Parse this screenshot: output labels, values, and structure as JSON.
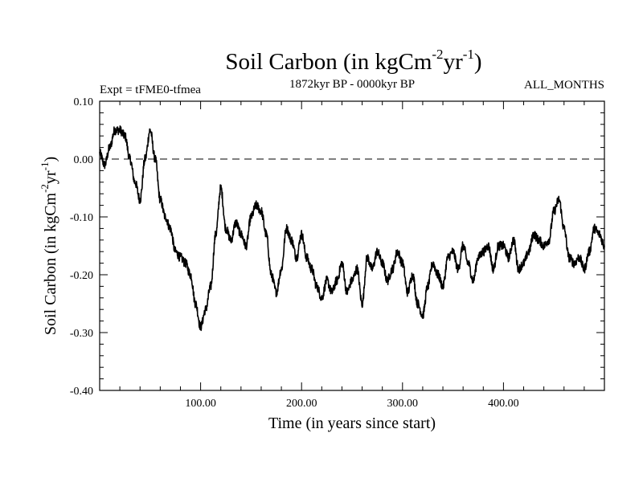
{
  "chart_data": {
    "type": "line",
    "title_main": "Soil Carbon (in kgCm",
    "title_sup1": "-2",
    "title_mid": "yr",
    "title_sup2": "-1",
    "title_end": ")",
    "expt_label": "Expt = tFME0-tfmea",
    "period_label": "1872kyr BP - 0000kyr BP",
    "season_label": "ALL_MONTHS",
    "xlabel": "Time (in years since start)",
    "ylabel_main": "Soil Carbon (in kgCm",
    "ylabel_sup1": "-2",
    "ylabel_mid": "yr",
    "ylabel_sup2": "-1",
    "ylabel_end": ")",
    "xlim": [
      0,
      500
    ],
    "ylim": [
      -0.4,
      0.1
    ],
    "xticks": [
      100,
      200,
      300,
      400
    ],
    "xtick_labels": [
      "100.00",
      "200.00",
      "300.00",
      "400.00"
    ],
    "yticks": [
      0.1,
      0.0,
      -0.1,
      -0.2,
      -0.3,
      -0.4
    ],
    "ytick_labels": [
      "0.10",
      "0.00",
      "-0.10",
      "-0.20",
      "-0.30",
      "-0.40"
    ],
    "reference_line": {
      "y": 0.0,
      "style": "dashed"
    },
    "series": [
      {
        "name": "Soil Carbon",
        "x": [
          0,
          5,
          10,
          15,
          20,
          25,
          30,
          35,
          40,
          45,
          50,
          55,
          60,
          65,
          70,
          75,
          80,
          85,
          90,
          95,
          100,
          105,
          110,
          115,
          120,
          125,
          130,
          135,
          140,
          145,
          150,
          155,
          160,
          165,
          170,
          175,
          180,
          185,
          190,
          195,
          200,
          205,
          210,
          215,
          220,
          225,
          230,
          235,
          240,
          245,
          250,
          255,
          260,
          265,
          270,
          275,
          280,
          285,
          290,
          295,
          300,
          305,
          310,
          315,
          320,
          325,
          330,
          335,
          340,
          345,
          350,
          355,
          360,
          365,
          370,
          375,
          380,
          385,
          390,
          395,
          400,
          405,
          410,
          415,
          420,
          425,
          430,
          435,
          440,
          445,
          450,
          455,
          460,
          465,
          470,
          475,
          480,
          485,
          490,
          495,
          500
        ],
        "y": [
          0.01,
          -0.01,
          0.02,
          0.05,
          0.05,
          0.04,
          0.0,
          -0.04,
          -0.07,
          0.0,
          0.05,
          0.0,
          -0.07,
          -0.1,
          -0.12,
          -0.16,
          -0.17,
          -0.18,
          -0.2,
          -0.25,
          -0.29,
          -0.26,
          -0.22,
          -0.13,
          -0.05,
          -0.12,
          -0.14,
          -0.11,
          -0.13,
          -0.15,
          -0.1,
          -0.08,
          -0.09,
          -0.13,
          -0.2,
          -0.23,
          -0.19,
          -0.12,
          -0.14,
          -0.17,
          -0.13,
          -0.17,
          -0.19,
          -0.22,
          -0.24,
          -0.21,
          -0.23,
          -0.21,
          -0.18,
          -0.23,
          -0.21,
          -0.19,
          -0.25,
          -0.17,
          -0.19,
          -0.16,
          -0.18,
          -0.21,
          -0.19,
          -0.16,
          -0.18,
          -0.23,
          -0.2,
          -0.25,
          -0.27,
          -0.22,
          -0.18,
          -0.2,
          -0.22,
          -0.17,
          -0.16,
          -0.19,
          -0.15,
          -0.18,
          -0.21,
          -0.17,
          -0.16,
          -0.15,
          -0.19,
          -0.15,
          -0.15,
          -0.17,
          -0.14,
          -0.19,
          -0.18,
          -0.16,
          -0.13,
          -0.14,
          -0.15,
          -0.14,
          -0.09,
          -0.07,
          -0.12,
          -0.17,
          -0.18,
          -0.17,
          -0.19,
          -0.16,
          -0.12,
          -0.13,
          -0.15
        ]
      }
    ]
  }
}
